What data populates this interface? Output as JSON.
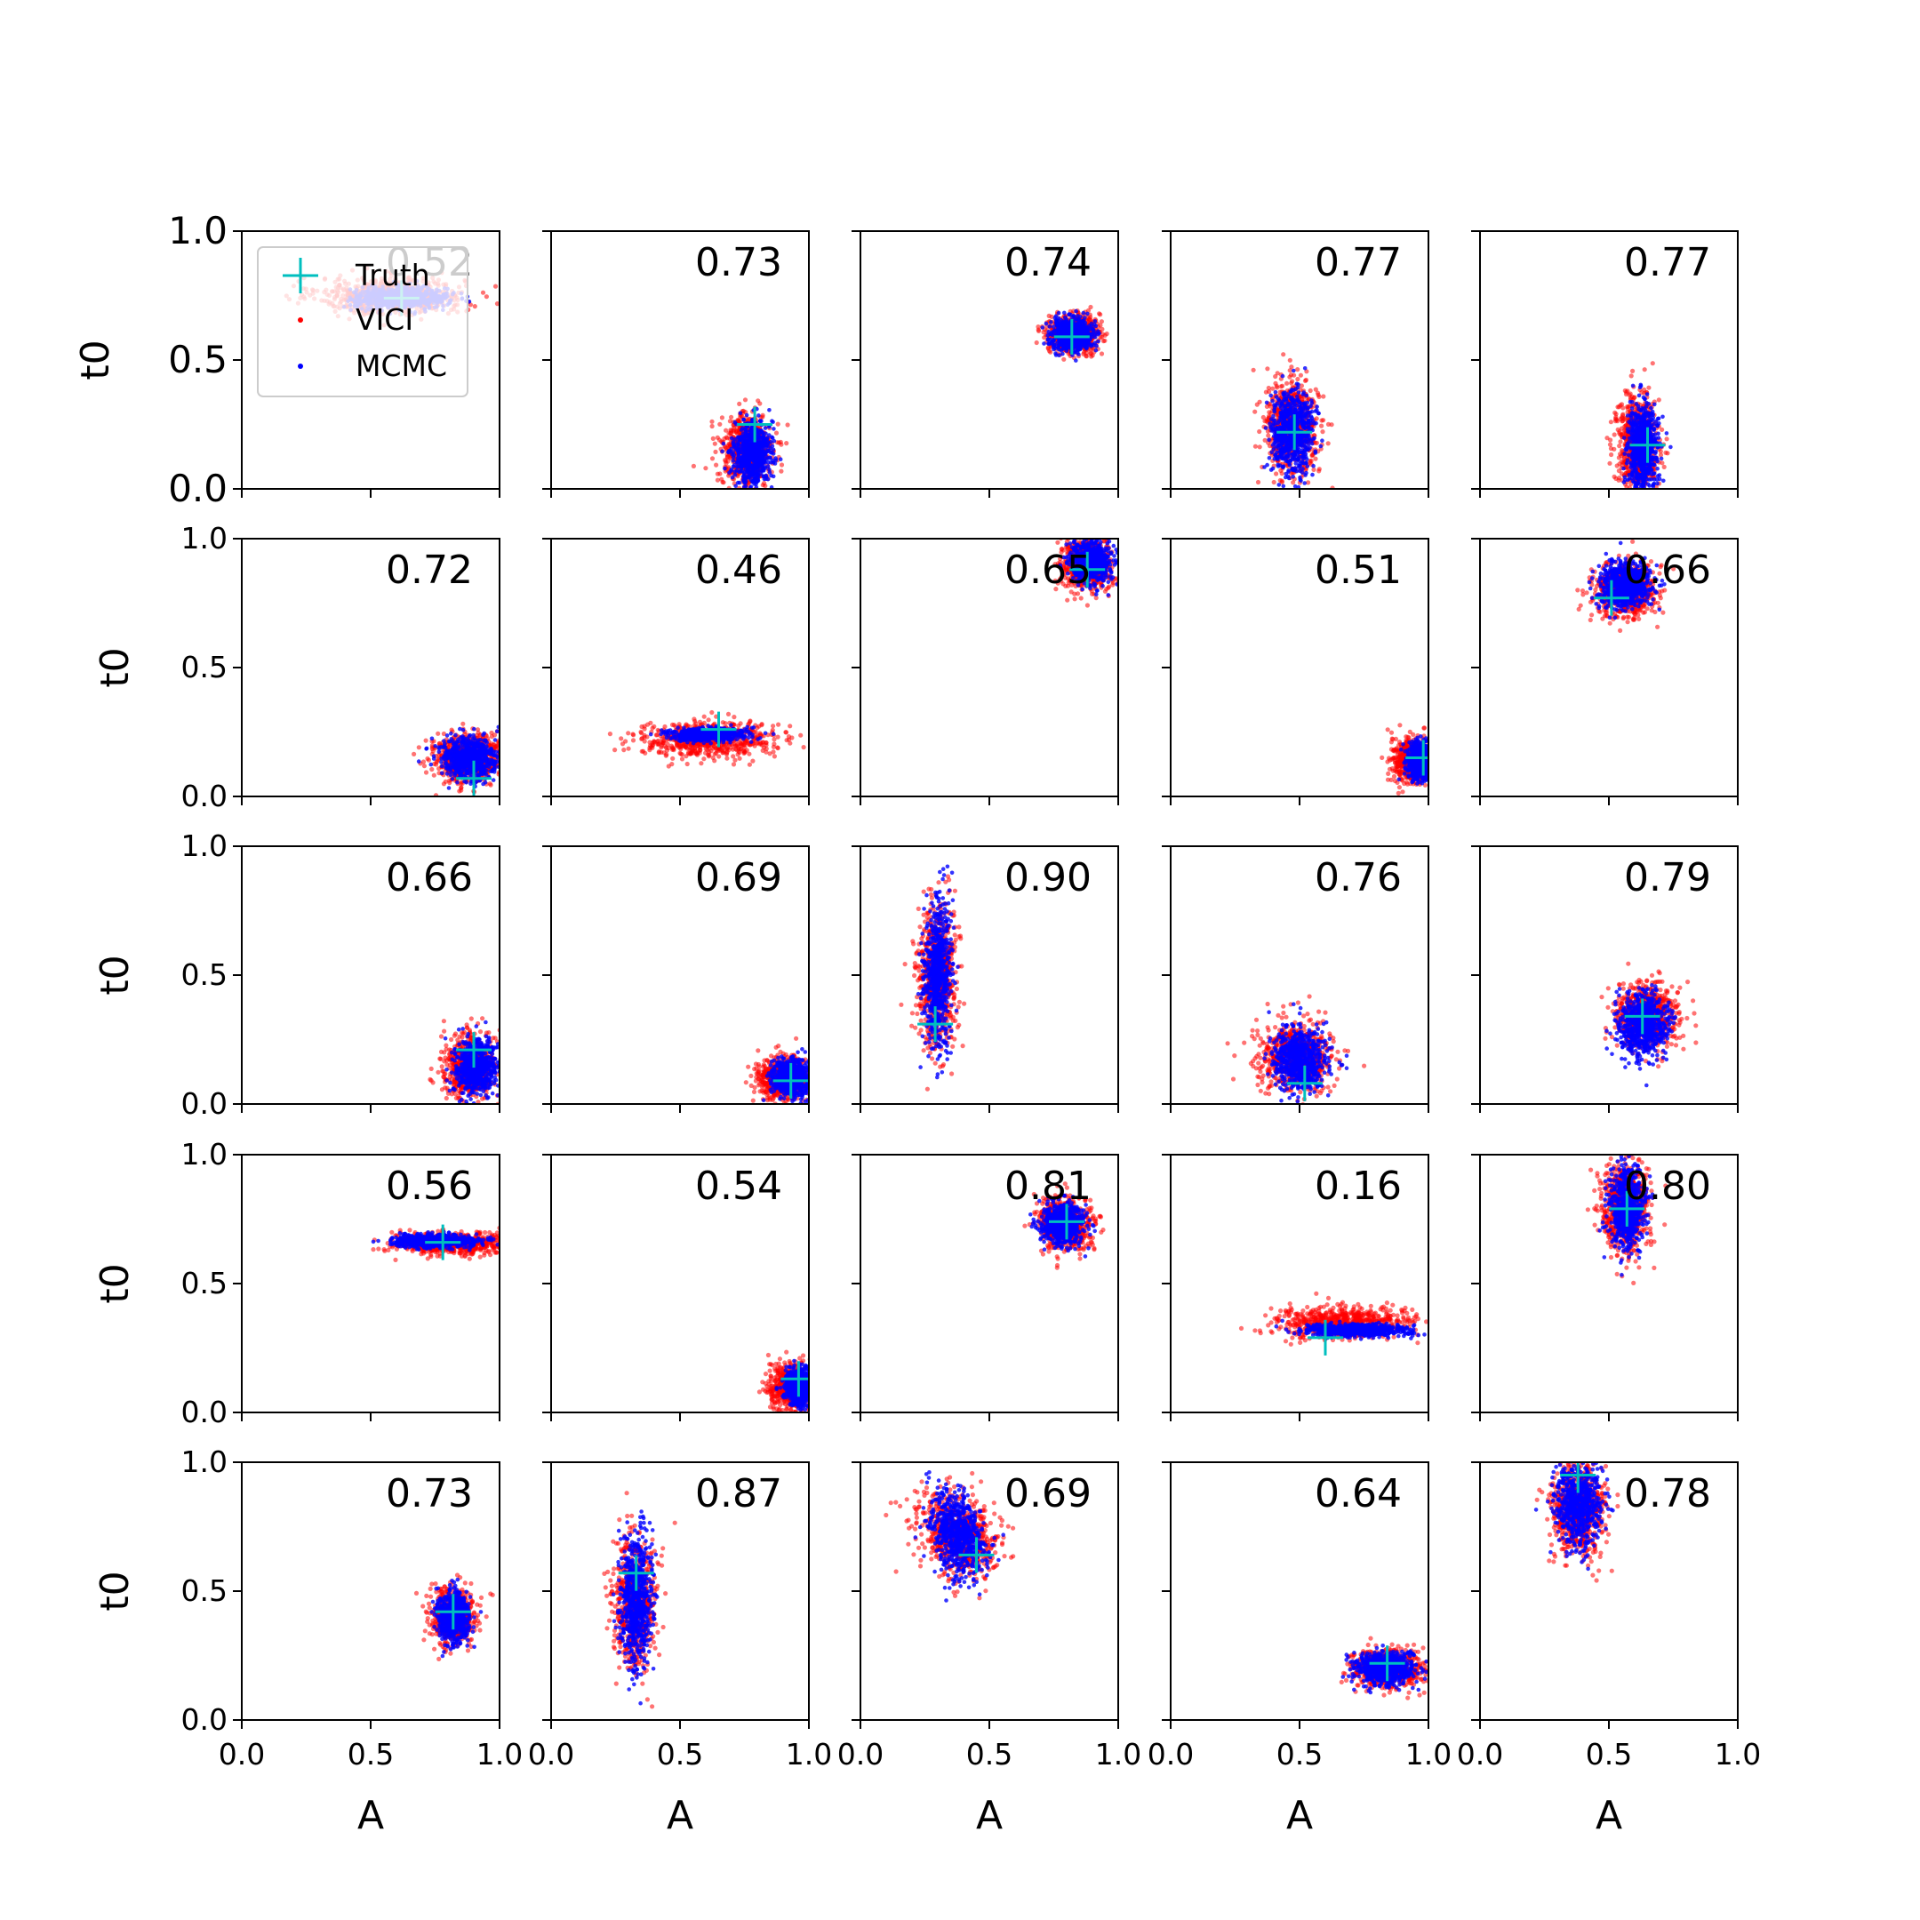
{
  "colors": {
    "vici": "#ff0000",
    "mcmc": "#0000ff",
    "truth": "#00bfbf",
    "axes": "#000000",
    "background": "#ffffff"
  },
  "legend": {
    "placement": "top-left",
    "entries": [
      {
        "label": "Truth",
        "marker": "plus",
        "color": "#00bfbf"
      },
      {
        "label": "VICI",
        "marker": "dot",
        "color": "#ff0000"
      },
      {
        "label": "MCMC",
        "marker": "dot",
        "color": "#0000ff"
      }
    ]
  },
  "chart_data": {
    "type": "scatter",
    "layout": {
      "rows": 5,
      "cols": 5
    },
    "xlabel": "A",
    "ylabel": "t0",
    "xlim": [
      0,
      1
    ],
    "ylim": [
      0,
      1
    ],
    "x_ticks": [
      "0.0",
      "0.5",
      "1.0"
    ],
    "y_ticks": [
      "0.0",
      "0.5",
      "1.0"
    ],
    "grid": false,
    "series_names": [
      "Truth",
      "VICI",
      "MCMC"
    ],
    "panels": [
      {
        "score": "0.52",
        "truth": [
          0.62,
          0.74
        ],
        "vici": {
          "mean": [
            0.58,
            0.75
          ],
          "sd": [
            0.14,
            0.035
          ],
          "rho": 0
        },
        "mcmc": {
          "mean": [
            0.62,
            0.74
          ],
          "sd": [
            0.09,
            0.02
          ],
          "rho": 0
        }
      },
      {
        "score": "0.73",
        "truth": [
          0.79,
          0.25
        ],
        "vici": {
          "mean": [
            0.76,
            0.15
          ],
          "sd": [
            0.05,
            0.07
          ],
          "rho": 0
        },
        "mcmc": {
          "mean": [
            0.78,
            0.14
          ],
          "sd": [
            0.035,
            0.06
          ],
          "rho": 0
        }
      },
      {
        "score": "0.74",
        "truth": [
          0.82,
          0.59
        ],
        "vici": {
          "mean": [
            0.83,
            0.6
          ],
          "sd": [
            0.05,
            0.035
          ],
          "rho": 0
        },
        "mcmc": {
          "mean": [
            0.82,
            0.6
          ],
          "sd": [
            0.04,
            0.03
          ],
          "rho": 0
        }
      },
      {
        "score": "0.77",
        "truth": [
          0.48,
          0.22
        ],
        "vici": {
          "mean": [
            0.47,
            0.24
          ],
          "sd": [
            0.05,
            0.09
          ],
          "rho": 0
        },
        "mcmc": {
          "mean": [
            0.47,
            0.22
          ],
          "sd": [
            0.04,
            0.08
          ],
          "rho": 0
        }
      },
      {
        "score": "0.77",
        "truth": [
          0.65,
          0.17
        ],
        "vici": {
          "mean": [
            0.61,
            0.17
          ],
          "sd": [
            0.04,
            0.09
          ],
          "rho": 0
        },
        "mcmc": {
          "mean": [
            0.63,
            0.16
          ],
          "sd": [
            0.03,
            0.08
          ],
          "rho": 0
        }
      },
      {
        "score": "0.72",
        "truth": [
          0.9,
          0.07
        ],
        "vici": {
          "mean": [
            0.88,
            0.15
          ],
          "sd": [
            0.07,
            0.045
          ],
          "rho": 0
        },
        "mcmc": {
          "mean": [
            0.88,
            0.15
          ],
          "sd": [
            0.055,
            0.04
          ],
          "rho": 0
        }
      },
      {
        "score": "0.46",
        "truth": [
          0.65,
          0.26
        ],
        "vici": {
          "mean": [
            0.6,
            0.22
          ],
          "sd": [
            0.13,
            0.035
          ],
          "rho": 0
        },
        "mcmc": {
          "mean": [
            0.6,
            0.24
          ],
          "sd": [
            0.07,
            0.012
          ],
          "rho": 0
        }
      },
      {
        "score": "0.65",
        "truth": [
          0.88,
          0.88
        ],
        "vici": {
          "mean": [
            0.88,
            0.9
          ],
          "sd": [
            0.05,
            0.05
          ],
          "rho": 0
        },
        "mcmc": {
          "mean": [
            0.89,
            0.91
          ],
          "sd": [
            0.04,
            0.04
          ],
          "rho": 0
        }
      },
      {
        "score": "0.51",
        "truth": [
          0.98,
          0.15
        ],
        "vici": {
          "mean": [
            0.94,
            0.14
          ],
          "sd": [
            0.04,
            0.04
          ],
          "rho": 0
        },
        "mcmc": {
          "mean": [
            0.97,
            0.14
          ],
          "sd": [
            0.025,
            0.035
          ],
          "rho": 0
        }
      },
      {
        "score": "0.66",
        "truth": [
          0.51,
          0.77
        ],
        "vici": {
          "mean": [
            0.56,
            0.8
          ],
          "sd": [
            0.06,
            0.05
          ],
          "rho": 0
        },
        "mcmc": {
          "mean": [
            0.56,
            0.82
          ],
          "sd": [
            0.05,
            0.045
          ],
          "rho": 0
        }
      },
      {
        "score": "0.66",
        "truth": [
          0.9,
          0.21
        ],
        "vici": {
          "mean": [
            0.88,
            0.14
          ],
          "sd": [
            0.05,
            0.06
          ],
          "rho": 0
        },
        "mcmc": {
          "mean": [
            0.91,
            0.14
          ],
          "sd": [
            0.04,
            0.055
          ],
          "rho": 0
        }
      },
      {
        "score": "0.69",
        "truth": [
          0.93,
          0.09
        ],
        "vici": {
          "mean": [
            0.9,
            0.1
          ],
          "sd": [
            0.05,
            0.04
          ],
          "rho": 0
        },
        "mcmc": {
          "mean": [
            0.93,
            0.1
          ],
          "sd": [
            0.035,
            0.035
          ],
          "rho": 0
        }
      },
      {
        "score": "0.90",
        "truth": [
          0.29,
          0.31
        ],
        "vici": {
          "mean": [
            0.3,
            0.5
          ],
          "sd": [
            0.04,
            0.14
          ],
          "rho": 0
        },
        "mcmc": {
          "mean": [
            0.3,
            0.5
          ],
          "sd": [
            0.025,
            0.14
          ],
          "rho": 0
        }
      },
      {
        "score": "0.76",
        "truth": [
          0.52,
          0.08
        ],
        "vici": {
          "mean": [
            0.49,
            0.18
          ],
          "sd": [
            0.07,
            0.07
          ],
          "rho": 0
        },
        "mcmc": {
          "mean": [
            0.5,
            0.17
          ],
          "sd": [
            0.05,
            0.06
          ],
          "rho": 0
        }
      },
      {
        "score": "0.79",
        "truth": [
          0.63,
          0.34
        ],
        "vici": {
          "mean": [
            0.65,
            0.34
          ],
          "sd": [
            0.06,
            0.06
          ],
          "rho": 0
        },
        "mcmc": {
          "mean": [
            0.63,
            0.31
          ],
          "sd": [
            0.045,
            0.06
          ],
          "rho": 0
        }
      },
      {
        "score": "0.56",
        "truth": [
          0.78,
          0.66
        ],
        "vici": {
          "mean": [
            0.82,
            0.655
          ],
          "sd": [
            0.12,
            0.02
          ],
          "rho": 0
        },
        "mcmc": {
          "mean": [
            0.75,
            0.665
          ],
          "sd": [
            0.08,
            0.013
          ],
          "rho": 0
        }
      },
      {
        "score": "0.54",
        "truth": [
          0.96,
          0.13
        ],
        "vici": {
          "mean": [
            0.93,
            0.1
          ],
          "sd": [
            0.04,
            0.04
          ],
          "rho": 0
        },
        "mcmc": {
          "mean": [
            0.96,
            0.1
          ],
          "sd": [
            0.025,
            0.035
          ],
          "rho": 0
        }
      },
      {
        "score": "0.81",
        "truth": [
          0.8,
          0.74
        ],
        "vici": {
          "mean": [
            0.79,
            0.73
          ],
          "sd": [
            0.05,
            0.05
          ],
          "rho": 0
        },
        "mcmc": {
          "mean": [
            0.78,
            0.73
          ],
          "sd": [
            0.04,
            0.04
          ],
          "rho": 0
        }
      },
      {
        "score": "0.16",
        "truth": [
          0.6,
          0.29
        ],
        "vici": {
          "mean": [
            0.67,
            0.35
          ],
          "sd": [
            0.13,
            0.03
          ],
          "rho": 0
        },
        "mcmc": {
          "mean": [
            0.73,
            0.32
          ],
          "sd": [
            0.1,
            0.012
          ],
          "rho": 0
        }
      },
      {
        "score": "0.80",
        "truth": [
          0.57,
          0.79
        ],
        "vici": {
          "mean": [
            0.56,
            0.8
          ],
          "sd": [
            0.045,
            0.09
          ],
          "rho": 0
        },
        "mcmc": {
          "mean": [
            0.57,
            0.79
          ],
          "sd": [
            0.035,
            0.08
          ],
          "rho": 0
        }
      },
      {
        "score": "0.73",
        "truth": [
          0.82,
          0.42
        ],
        "vici": {
          "mean": [
            0.82,
            0.4
          ],
          "sd": [
            0.04,
            0.05
          ],
          "rho": 0
        },
        "mcmc": {
          "mean": [
            0.82,
            0.4
          ],
          "sd": [
            0.03,
            0.045
          ],
          "rho": 0
        }
      },
      {
        "score": "0.87",
        "truth": [
          0.33,
          0.57
        ],
        "vici": {
          "mean": [
            0.32,
            0.46
          ],
          "sd": [
            0.04,
            0.12
          ],
          "rho": 0
        },
        "mcmc": {
          "mean": [
            0.33,
            0.46
          ],
          "sd": [
            0.03,
            0.12
          ],
          "rho": 0
        }
      },
      {
        "score": "0.69",
        "truth": [
          0.45,
          0.64
        ],
        "vici": {
          "mean": [
            0.38,
            0.72
          ],
          "sd": [
            0.08,
            0.08
          ],
          "rho": -0.3
        },
        "mcmc": {
          "mean": [
            0.38,
            0.72
          ],
          "sd": [
            0.05,
            0.08
          ],
          "rho": -0.3
        }
      },
      {
        "score": "0.64",
        "truth": [
          0.84,
          0.22
        ],
        "vici": {
          "mean": [
            0.84,
            0.2
          ],
          "sd": [
            0.07,
            0.035
          ],
          "rho": 0
        },
        "mcmc": {
          "mean": [
            0.83,
            0.2
          ],
          "sd": [
            0.055,
            0.03
          ],
          "rho": 0
        }
      },
      {
        "score": "0.78",
        "truth": [
          0.38,
          0.95
        ],
        "vici": {
          "mean": [
            0.38,
            0.82
          ],
          "sd": [
            0.05,
            0.09
          ],
          "rho": 0
        },
        "mcmc": {
          "mean": [
            0.38,
            0.84
          ],
          "sd": [
            0.045,
            0.08
          ],
          "rho": 0
        }
      }
    ]
  }
}
